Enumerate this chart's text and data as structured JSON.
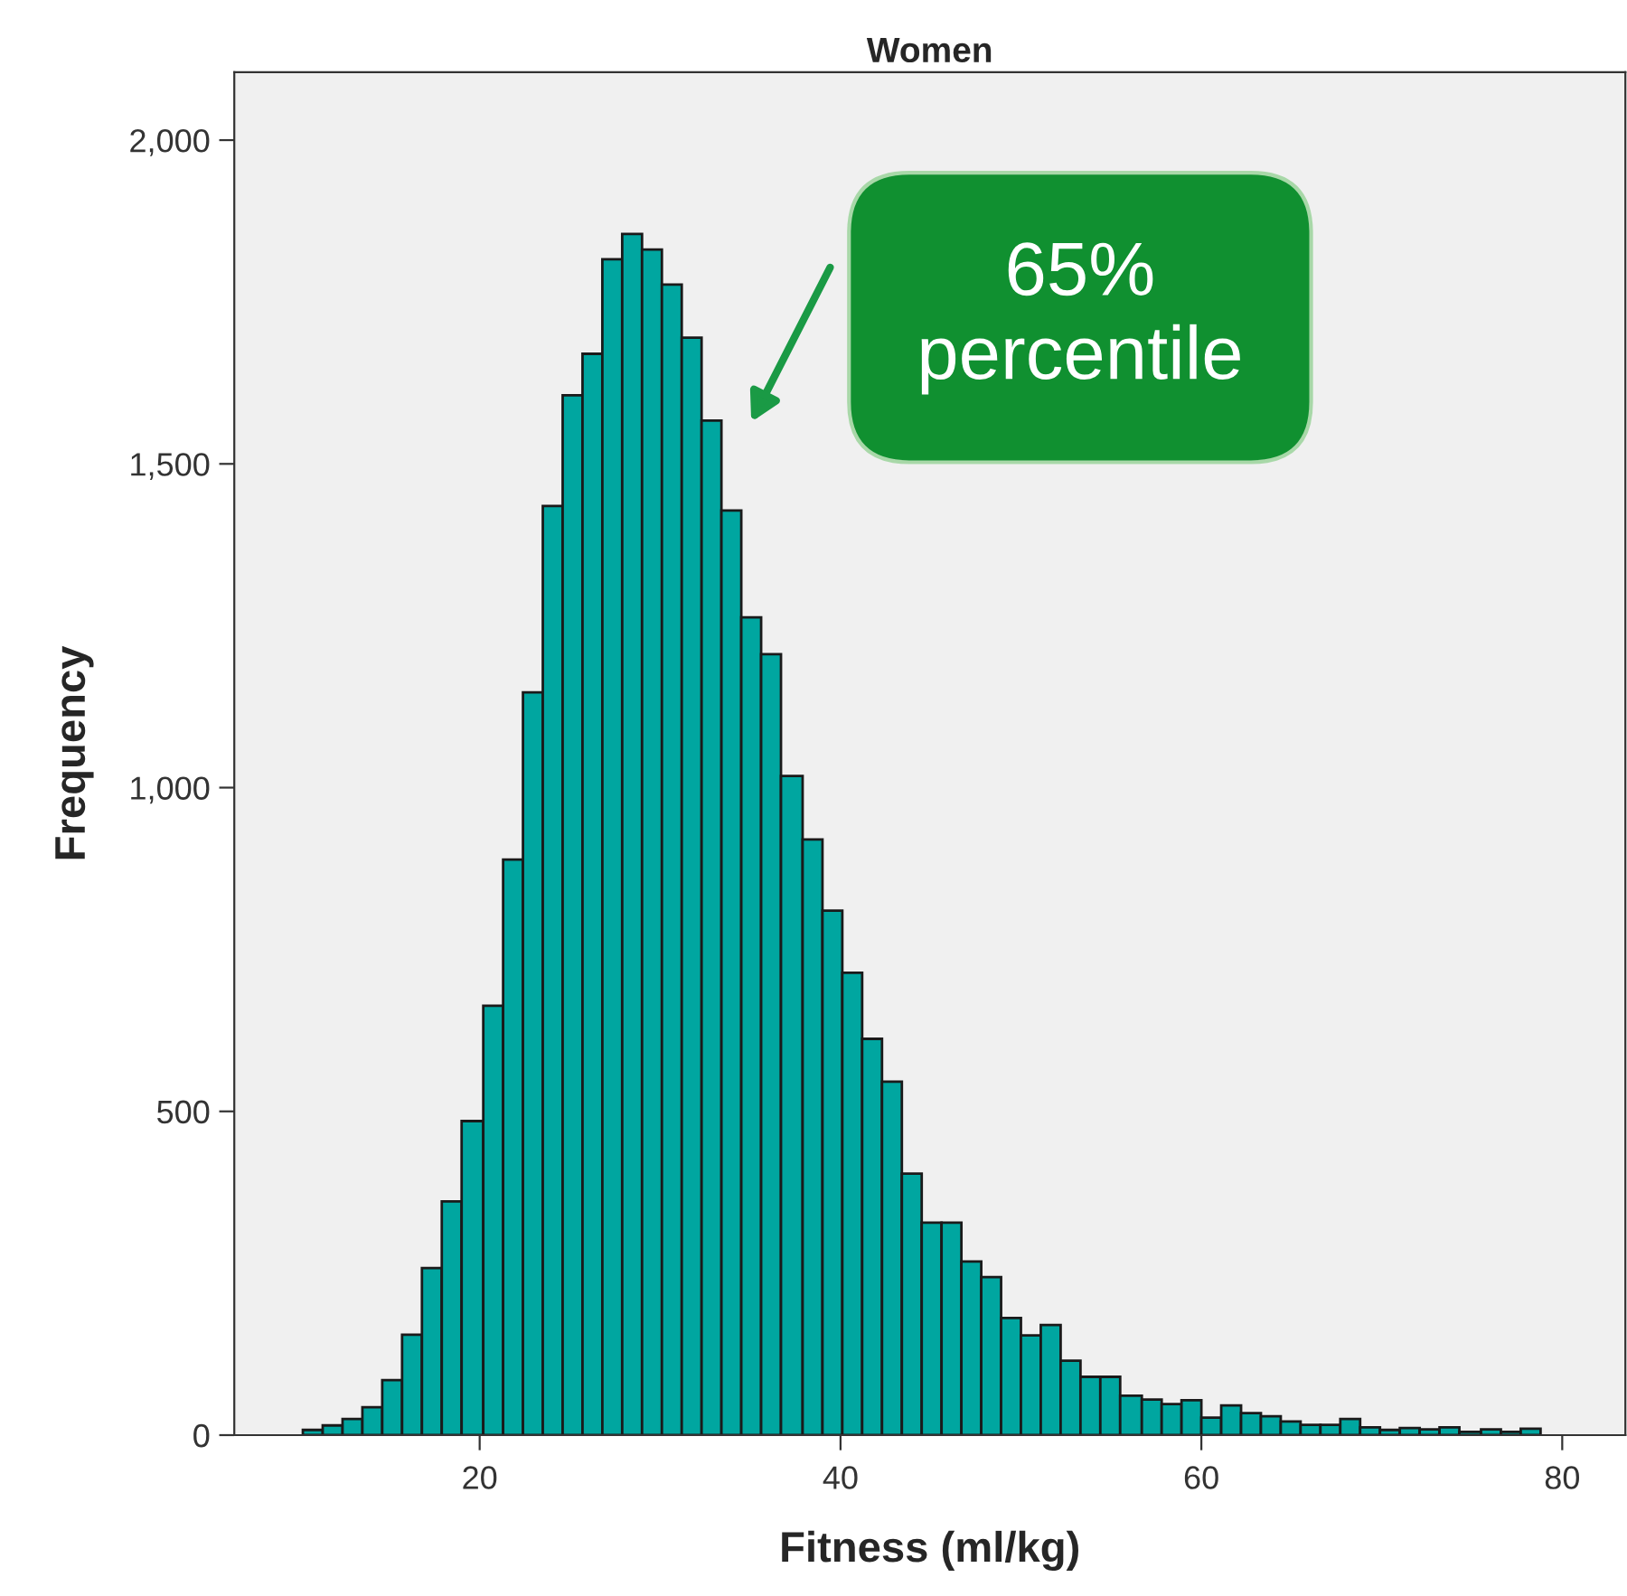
{
  "chart_data": {
    "type": "histogram",
    "title": "Women",
    "xlabel": "Fitness (ml/kg)",
    "ylabel": "Frequency",
    "bins": [
      10.2,
      11.3,
      12.4,
      13.5,
      14.6,
      15.7,
      16.8,
      17.9,
      19.0,
      20.2,
      21.3,
      22.4,
      23.5,
      24.6,
      25.7,
      26.8,
      27.9,
      29.0,
      30.1,
      31.2,
      32.3,
      33.4,
      34.5,
      35.6,
      36.7,
      37.9,
      39.0,
      40.1,
      41.2,
      42.3,
      43.4,
      44.5,
      45.6,
      46.7,
      47.8,
      48.9,
      50.0,
      51.1,
      52.2,
      53.3,
      54.4,
      55.5,
      56.7,
      57.8,
      58.9,
      60.0,
      61.1,
      62.2,
      63.3,
      64.4,
      65.5,
      66.6,
      67.7,
      68.8,
      69.9,
      71.0,
      72.1,
      73.2,
      74.3,
      75.5,
      76.6,
      77.7,
      78.8
    ],
    "values": [
      8,
      15,
      25,
      43,
      85,
      155,
      258,
      361,
      485,
      663,
      889,
      1147,
      1435,
      1606,
      1670,
      1816,
      1855,
      1831,
      1777,
      1695,
      1567,
      1428,
      1263,
      1206,
      1018,
      920,
      810,
      714,
      612,
      546,
      404,
      328,
      328,
      268,
      244,
      181,
      154,
      170,
      115,
      90,
      90,
      61,
      55,
      48,
      54,
      27,
      46,
      34,
      29,
      21,
      16,
      16,
      25,
      12,
      8,
      11,
      9,
      12,
      5,
      9,
      5,
      10
    ],
    "color": "#00a6a0",
    "xlim": [
      6.4,
      83.5
    ],
    "ylim": [
      0,
      2105
    ],
    "xticks": [
      20,
      40,
      60,
      80
    ],
    "yticks": [
      0,
      500,
      {
        "value": 1000,
        "label": "1,000"
      },
      {
        "value": 1500,
        "label": "1,500"
      },
      {
        "value": 2000,
        "label": "2,000"
      }
    ],
    "grid": false,
    "annotations": [
      "65%\npercentile"
    ]
  }
}
